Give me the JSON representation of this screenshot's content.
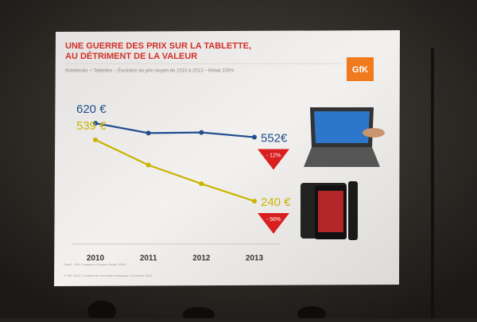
{
  "chart_data": {
    "type": "line",
    "title": [
      "UNE GUERRE DES PRIX SUR LA TABLETTE,",
      "AU DÉTRIMENT DE LA VALEUR"
    ],
    "subtitle": "Notebooks + Tablettes – Évolution du prix moyen de 2010 à 2013 – Retail 100%",
    "logo": "GfK",
    "categories": [
      "2010",
      "2011",
      "2012",
      "2013"
    ],
    "series": [
      {
        "color": "#1f4e8c",
        "values": [
          620,
          572,
          575,
          552
        ],
        "value_labels": [
          "620 €",
          null,
          null,
          "552€"
        ],
        "change_label": "- 12%"
      },
      {
        "color": "#c9b400",
        "values": [
          539,
          416,
          325,
          240
        ],
        "value_labels": [
          "539 €",
          null,
          null,
          "240 €"
        ],
        "change_label": "- 56%"
      }
    ],
    "source": "Panel : GfK Consumer Choices Panel 100%",
    "footer": "© GfK 2014 | Conférence des tiers techniques | 11 février 2014"
  }
}
